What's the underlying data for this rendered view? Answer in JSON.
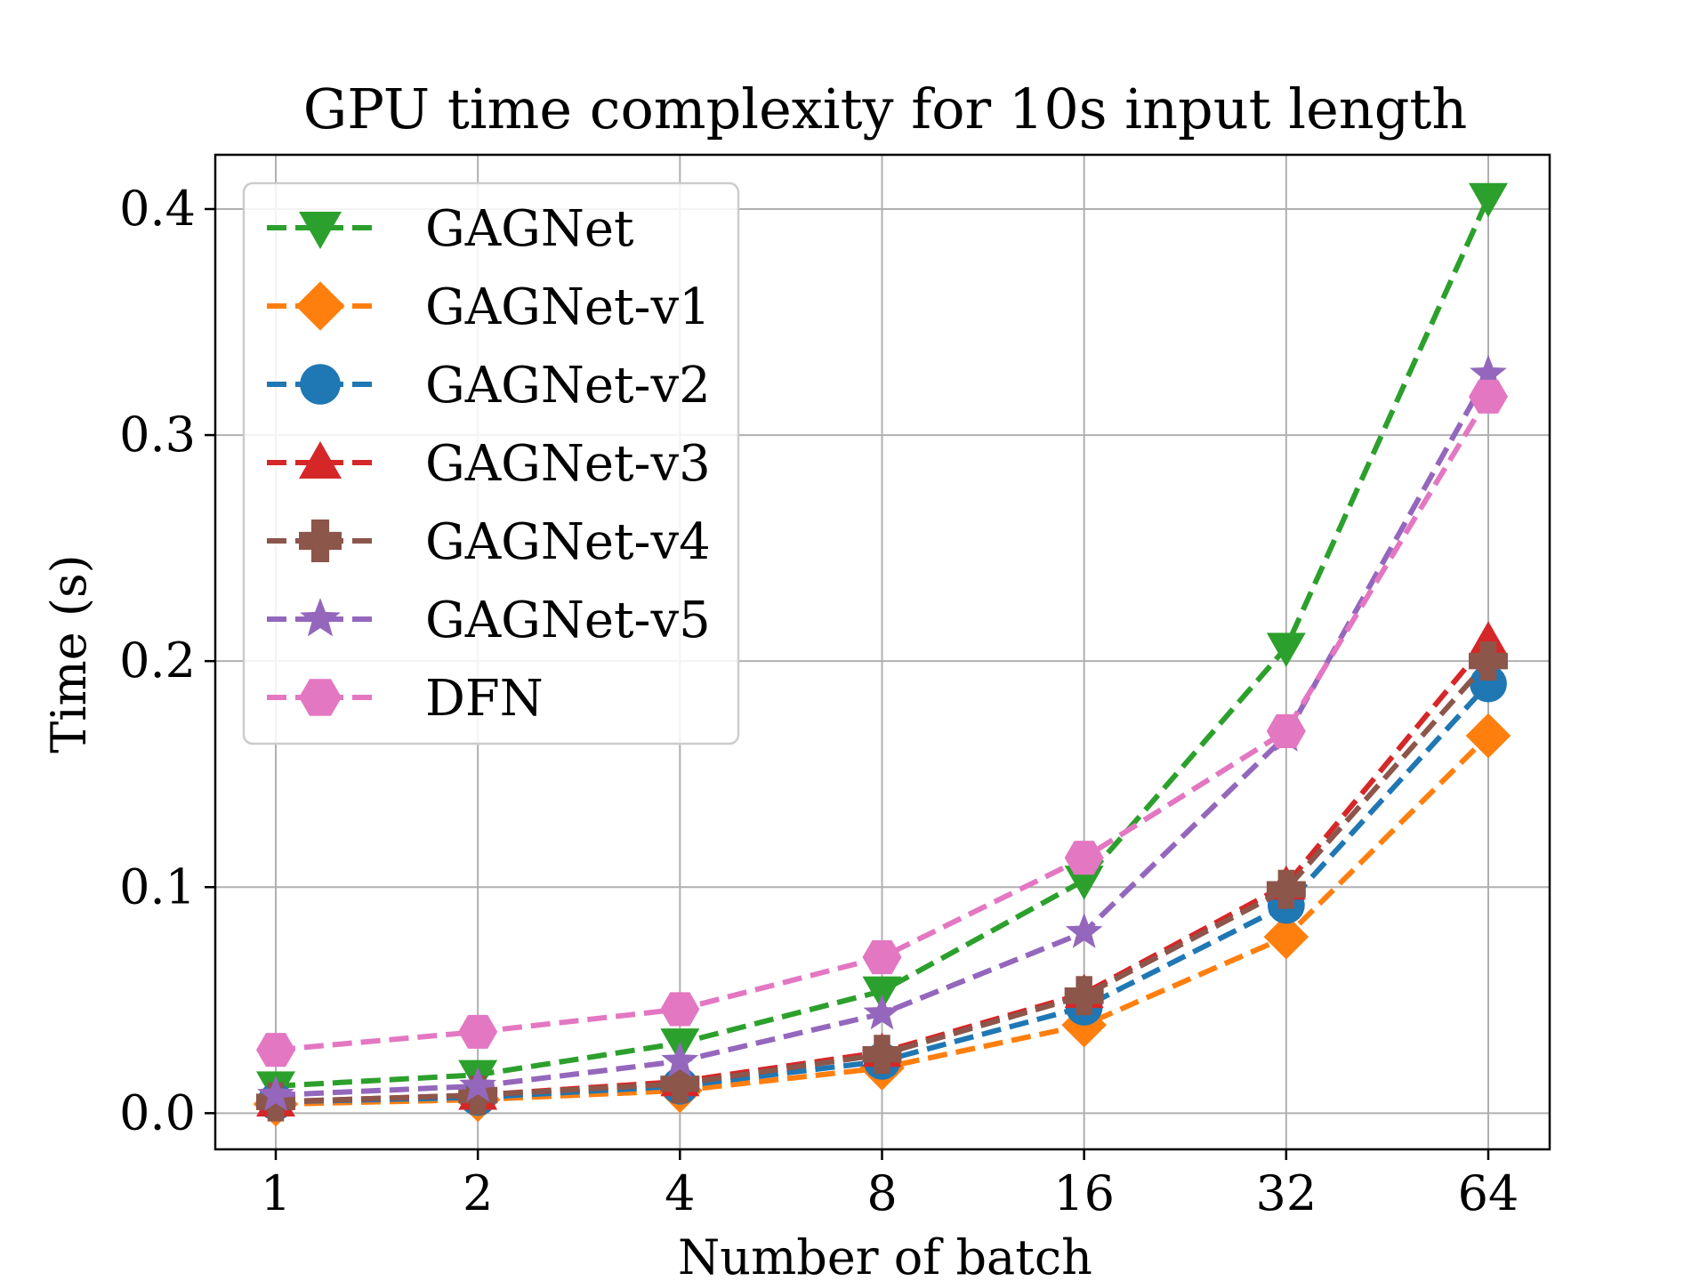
{
  "chart_data": {
    "type": "line",
    "title": "GPU time complexity for 10s input length",
    "xlabel": "Number of batch",
    "ylabel": "Time (s)",
    "x_scale": "log2",
    "categories": [
      "1",
      "2",
      "4",
      "8",
      "16",
      "32",
      "64"
    ],
    "x": [
      1,
      2,
      4,
      8,
      16,
      32,
      64
    ],
    "ylim": [
      -0.016,
      0.424
    ],
    "yticks": [
      0.0,
      0.1,
      0.2,
      0.3,
      0.4
    ],
    "ytick_labels": [
      "0.0",
      "0.1",
      "0.2",
      "0.3",
      "0.4"
    ],
    "grid": true,
    "legend_position": "upper-left",
    "series": [
      {
        "name": "GAGNet",
        "color": "#2ca02c",
        "marker": "triangle-down",
        "values": [
          0.012,
          0.017,
          0.031,
          0.054,
          0.103,
          0.206,
          0.405
        ]
      },
      {
        "name": "GAGNet-v1",
        "color": "#ff7f0e",
        "marker": "diamond",
        "values": [
          0.004,
          0.006,
          0.01,
          0.02,
          0.039,
          0.078,
          0.167
        ]
      },
      {
        "name": "GAGNet-v2",
        "color": "#1f77b4",
        "marker": "circle",
        "values": [
          0.005,
          0.007,
          0.012,
          0.023,
          0.047,
          0.092,
          0.19
        ]
      },
      {
        "name": "GAGNet-v3",
        "color": "#d62728",
        "marker": "triangle-up",
        "values": [
          0.005,
          0.008,
          0.014,
          0.027,
          0.053,
          0.101,
          0.209
        ]
      },
      {
        "name": "GAGNet-v4",
        "color": "#8c564b",
        "marker": "plus",
        "values": [
          0.005,
          0.008,
          0.013,
          0.026,
          0.052,
          0.099,
          0.2
        ]
      },
      {
        "name": "GAGNet-v5",
        "color": "#9467bd",
        "marker": "star",
        "values": [
          0.008,
          0.012,
          0.023,
          0.044,
          0.08,
          0.167,
          0.327
        ]
      },
      {
        "name": "DFN",
        "color": "#e377c2",
        "marker": "hexagon",
        "values": [
          0.028,
          0.036,
          0.046,
          0.069,
          0.113,
          0.169,
          0.317
        ]
      }
    ]
  }
}
